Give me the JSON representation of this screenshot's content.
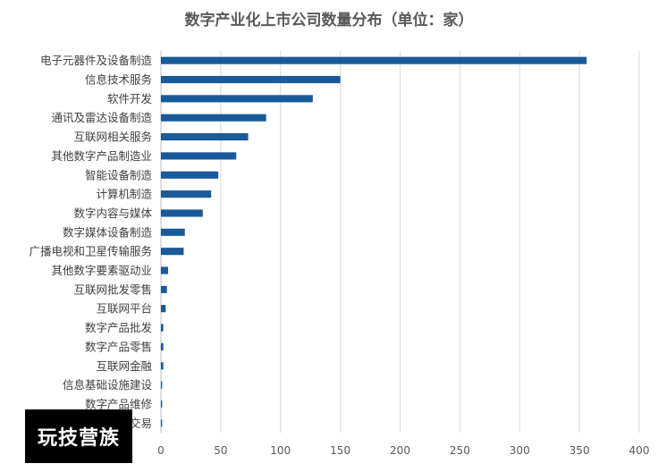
{
  "chart_data": {
    "type": "bar",
    "orientation": "horizontal",
    "title": "数字产业化上市公司数量分布（单位：家）",
    "categories": [
      "电子元器件及设备制造",
      "信息技术服务",
      "软件开发",
      "通讯及雷达设备制造",
      "互联网相关服务",
      "其他数字产品制造业",
      "智能设备制造",
      "计算机制造",
      "数字内容与媒体",
      "数字媒体设备制造",
      "广播电视和卫星传输服务",
      "其他数字要素驱动业",
      "互联网批发零售",
      "互联网平台",
      "数字产品批发",
      "数字产品零售",
      "互联网金融",
      "信息基础设施建设",
      "数字产品维修",
      "数据资源与产权交易"
    ],
    "values": [
      356,
      150,
      127,
      88,
      73,
      63,
      48,
      42,
      35,
      20,
      19,
      6,
      5,
      4,
      2,
      2,
      2,
      1,
      1,
      1
    ],
    "xlim": [
      0,
      400
    ],
    "xticks": [
      "0",
      "50",
      "100",
      "150",
      "200",
      "250",
      "300",
      "350",
      "400"
    ],
    "grid": true,
    "legend": "none",
    "colors": {
      "bar": "#1a5a9a",
      "grid": "#d9d9d9"
    }
  },
  "watermark": "玩技营族"
}
